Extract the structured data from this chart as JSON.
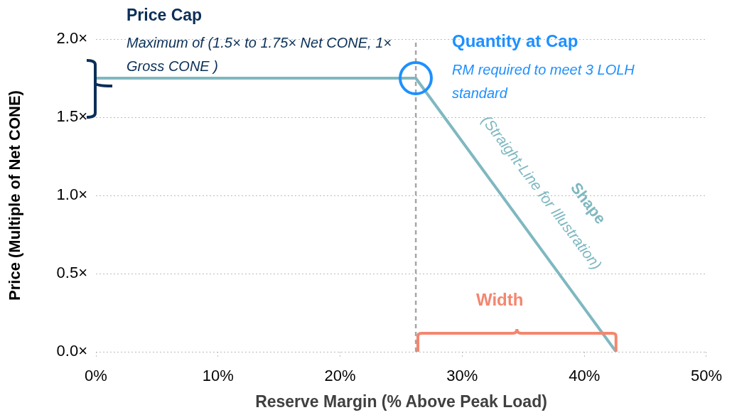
{
  "chart_data": {
    "type": "line",
    "xlabel": "Reserve Margin (% Above Peak Load)",
    "ylabel": "Price (Multiple of Net CONE)",
    "x": [
      0,
      26.2,
      42.6
    ],
    "series": [
      {
        "color": "#7fb8c0",
        "values": [
          1.75,
          1.75,
          0
        ]
      }
    ],
    "xlim": [
      0,
      50
    ],
    "xticks": [
      {
        "value": 0,
        "label": "0%"
      },
      {
        "value": 10,
        "label": "10%"
      },
      {
        "value": 20,
        "label": "20%"
      },
      {
        "value": 30,
        "label": "30%"
      },
      {
        "value": 40,
        "label": "40%"
      },
      {
        "value": 50,
        "label": "50%"
      }
    ],
    "ylim": [
      0,
      2
    ],
    "yticks": [
      {
        "value": 0,
        "label": "0.0×"
      },
      {
        "value": 0.5,
        "label": "0.5×"
      },
      {
        "value": 1,
        "label": "1.0×"
      },
      {
        "value": 1.5,
        "label": "1.5×"
      },
      {
        "value": 2,
        "label": "2.0×"
      }
    ],
    "ref_lines": [
      {
        "axis": "x",
        "value": 26.2,
        "color": "#a6a6a6",
        "line_style": "dashed"
      }
    ],
    "annotations": [
      "Price Cap",
      "Maximum of (1.5× to 1.75× Net CONE, 1× Gross CONE )",
      "Quantity at Cap",
      "RM required to meet 3 LOLH standard",
      "Shape",
      "(Straight-Line for Illustration)",
      "Width"
    ],
    "grid": "y",
    "marker": "none",
    "line_style": "solid",
    "legend": false
  }
}
